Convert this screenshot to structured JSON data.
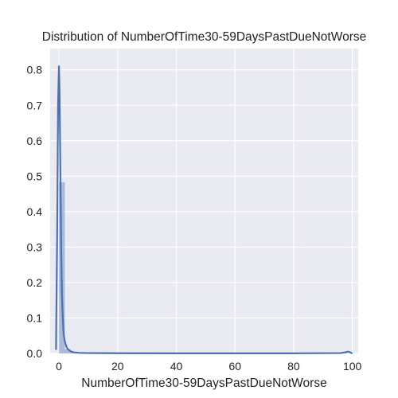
{
  "chart_data": {
    "type": "histogram",
    "title": "Distribution of NumberOfTime30-59DaysPastDueNotWorse",
    "xlabel": "NumberOfTime30-59DaysPastDueNotWorse",
    "ylabel": "",
    "xlim": [
      -3,
      102
    ],
    "ylim": [
      0,
      0.86
    ],
    "xticks": [
      0,
      20,
      40,
      60,
      80,
      100
    ],
    "yticks": [
      0.0,
      0.1,
      0.2,
      0.3,
      0.4,
      0.5,
      0.6,
      0.7,
      0.8
    ],
    "grid": true,
    "background": "#eaeaf2",
    "grid_color": "#ffffff",
    "series_color": "#4c72b0",
    "histogram": {
      "bins": [
        {
          "x0": 0.0,
          "x1": 2.0,
          "density": 0.483
        },
        {
          "x0": 2.0,
          "x1": 4.0,
          "density": 0.012
        },
        {
          "x0": 4.0,
          "x1": 6.0,
          "density": 0.003
        },
        {
          "x0": 6.0,
          "x1": 8.0,
          "density": 0.001
        },
        {
          "x0": 96.0,
          "x1": 98.0,
          "density": 0.002
        }
      ]
    },
    "kde": {
      "x": [
        -1.0,
        -0.6,
        -0.3,
        0.0,
        0.2,
        0.5,
        0.8,
        1.0,
        1.3,
        1.6,
        2.0,
        2.5,
        3.0,
        4.0,
        5.0,
        7.0,
        10.0,
        20.0,
        40.0,
        60.0,
        80.0,
        96.0,
        97.5,
        98.5,
        99.0,
        99.5,
        100.0
      ],
      "y": [
        0.01,
        0.35,
        0.7,
        0.81,
        0.74,
        0.5,
        0.28,
        0.17,
        0.1,
        0.055,
        0.034,
        0.02,
        0.012,
        0.006,
        0.003,
        0.0015,
        0.001,
        0.0005,
        0.0003,
        0.0003,
        0.0003,
        0.001,
        0.003,
        0.005,
        0.004,
        0.002,
        0.0
      ]
    }
  }
}
